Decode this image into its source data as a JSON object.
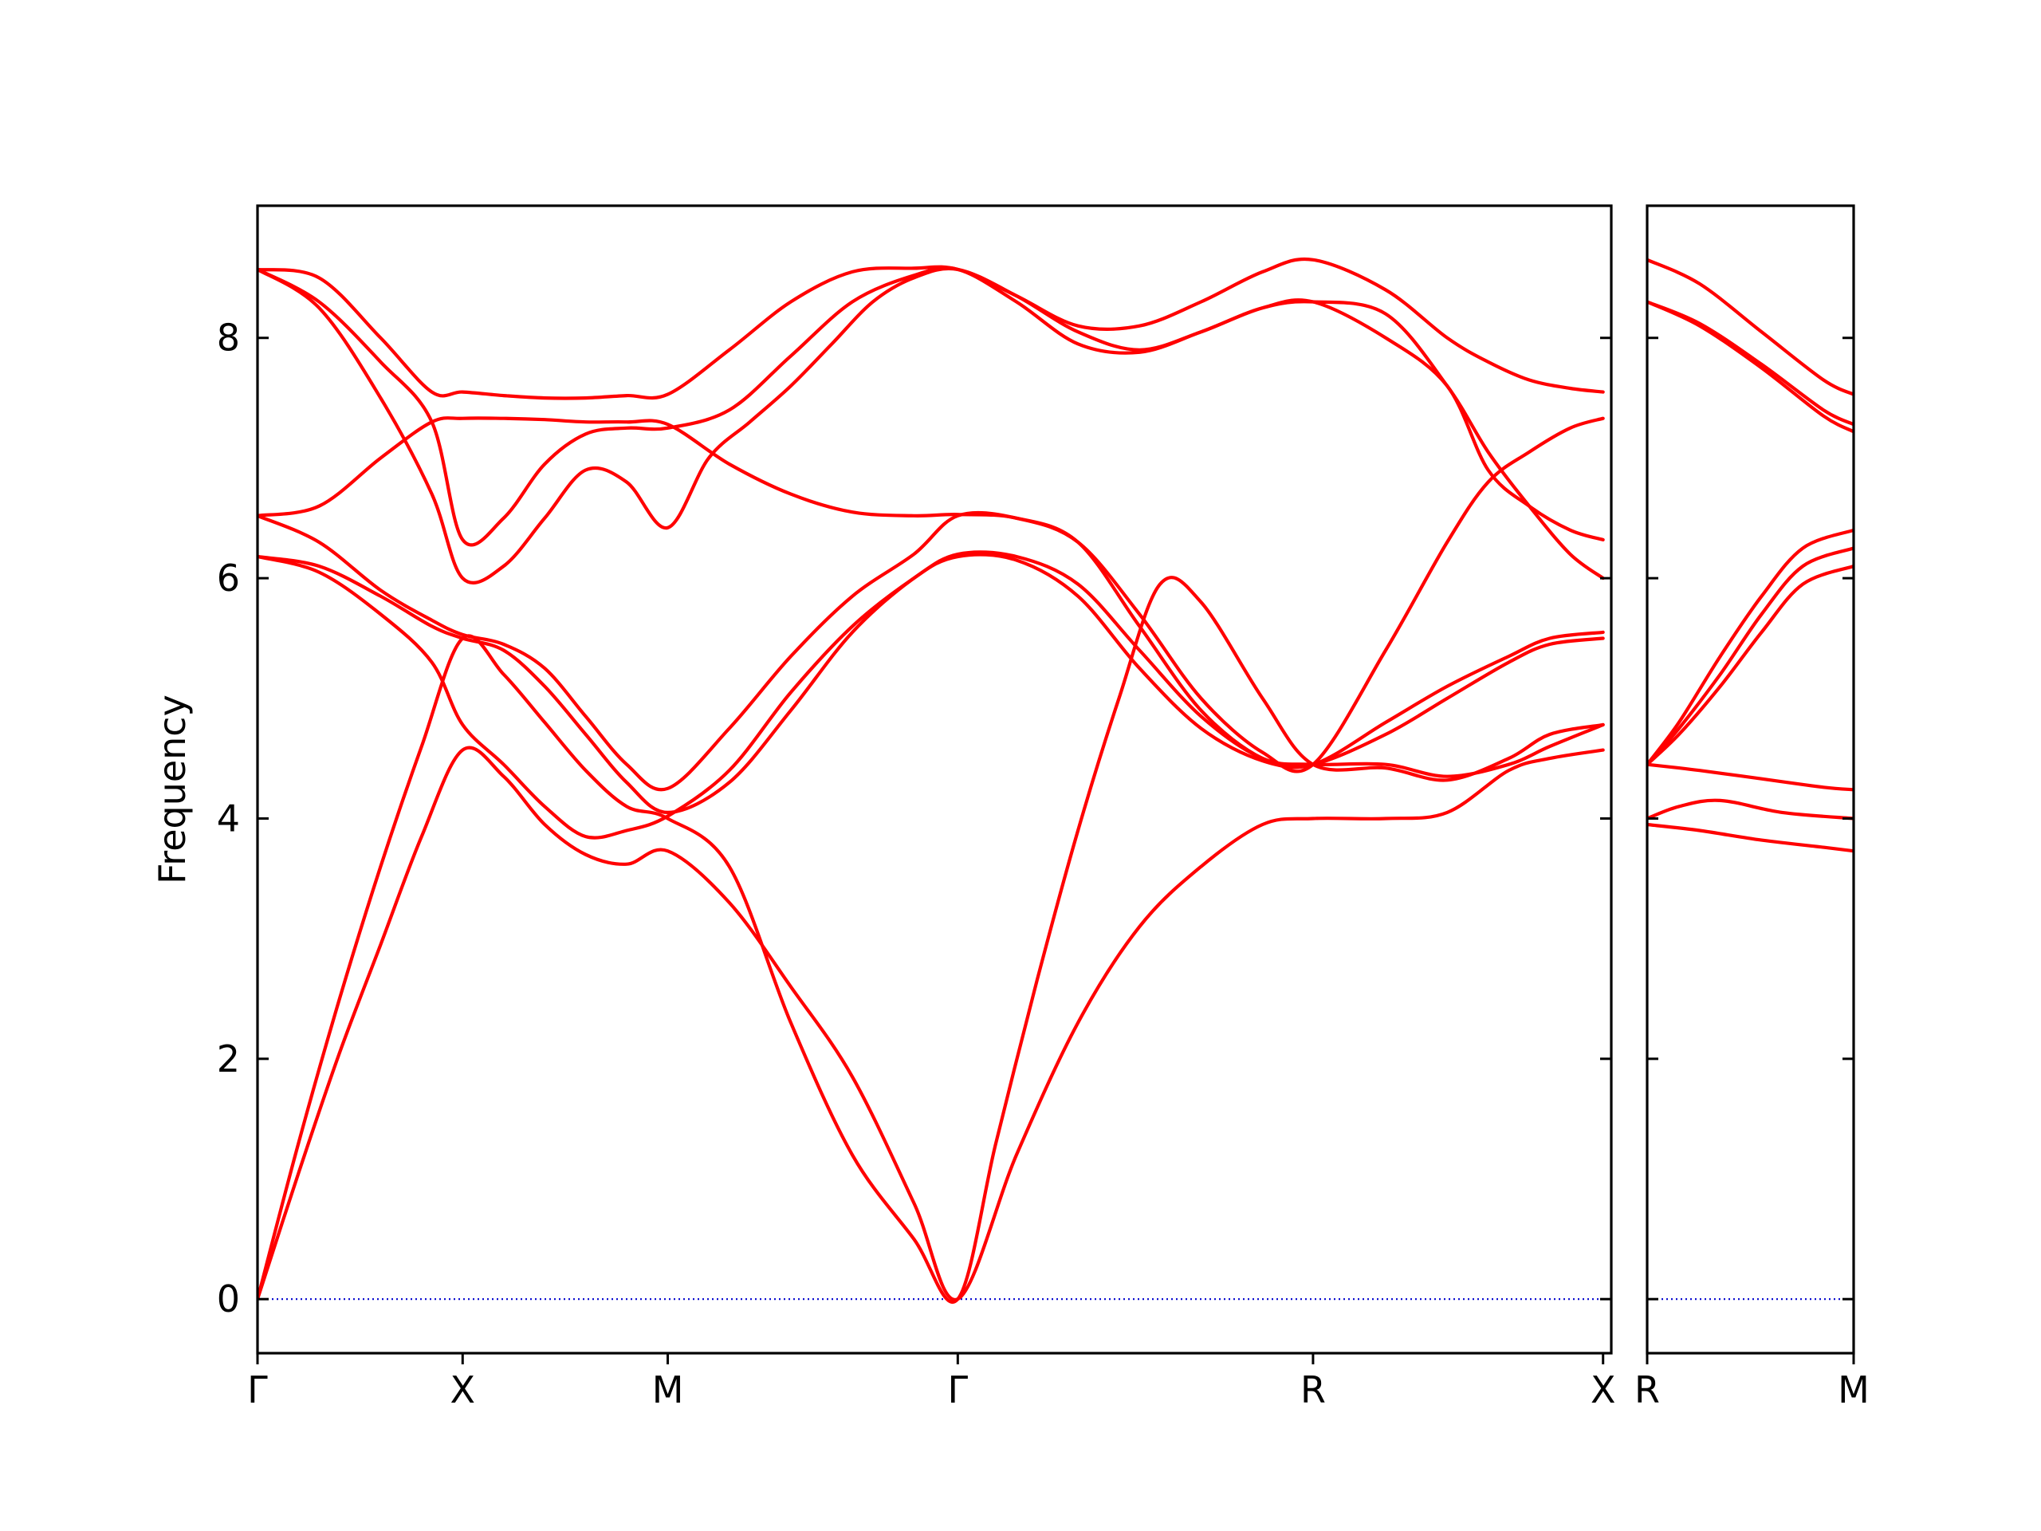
{
  "chart_data": {
    "type": "line",
    "ylabel": "Frequency",
    "xlabel": "",
    "ylim": [
      -0.45,
      9.1
    ],
    "yticks": [
      0,
      2,
      4,
      6,
      8
    ],
    "grid": false,
    "line_color": "#ff0000",
    "zero_line_color": "#0000cd",
    "panels": [
      {
        "xlim": [
          0,
          6.6
        ],
        "xticks": [
          {
            "x": 0,
            "label": "Γ"
          },
          {
            "x": 1.0,
            "label": "X"
          },
          {
            "x": 2.0,
            "label": "M"
          },
          {
            "x": 3.414,
            "label": "Γ"
          },
          {
            "x": 5.146,
            "label": "R"
          },
          {
            "x": 6.56,
            "label": "X"
          }
        ],
        "series": [
          {
            "x": [
              0,
              0.2,
              0.4,
              0.6,
              0.8,
              1.0,
              1.2,
              1.4,
              1.6,
              1.8,
              2.0,
              2.3,
              2.6,
              2.9,
              3.2,
              3.414,
              3.7,
              4.0,
              4.3,
              4.6,
              4.9,
              5.146,
              5.5,
              5.8,
              6.1,
              6.3,
              6.56
            ],
            "y": [
              0,
              1.05,
              2.05,
              2.95,
              3.85,
              4.57,
              4.35,
              3.95,
              3.7,
              3.62,
              3.73,
              3.3,
              2.6,
              1.85,
              0.8,
              0,
              1.2,
              2.3,
              3.1,
              3.6,
              3.95,
              4.0,
              4.0,
              4.05,
              4.4,
              4.5,
              4.57
            ]
          },
          {
            "x": [
              0,
              0.2,
              0.4,
              0.6,
              0.8,
              1.0,
              1.2,
              1.4,
              1.6,
              1.8,
              2.0,
              2.3,
              2.6,
              2.9,
              3.2,
              3.414,
              3.6,
              3.8,
              4.0,
              4.2,
              4.4,
              4.6,
              4.9,
              5.146,
              5.5,
              5.8,
              6.1,
              6.3,
              6.56
            ],
            "y": [
              0,
              1.3,
              2.5,
              3.6,
              4.6,
              5.5,
              5.2,
              4.8,
              4.4,
              4.1,
              4.0,
              3.6,
              2.3,
              1.2,
              0.5,
              0,
              1.3,
              2.65,
              3.9,
              5.0,
              5.95,
              5.8,
              5.0,
              4.45,
              4.42,
              4.32,
              4.5,
              4.7,
              4.78
            ]
          },
          {
            "x": [
              0,
              0.3,
              0.6,
              0.85,
              1.0,
              1.2,
              1.4,
              1.6,
              1.8,
              2.0,
              2.3,
              2.6,
              2.9,
              3.2,
              3.414,
              3.7,
              4.0,
              4.3,
              4.6,
              4.9,
              5.146,
              5.5,
              5.8,
              6.1,
              6.3,
              6.56
            ],
            "y": [
              6.18,
              6.05,
              5.7,
              5.3,
              4.78,
              4.45,
              4.1,
              3.85,
              3.9,
              4.02,
              4.4,
              5.05,
              5.6,
              6.0,
              6.2,
              6.18,
              5.95,
              5.4,
              4.85,
              4.5,
              4.45,
              4.45,
              4.35,
              4.45,
              4.6,
              4.78
            ]
          },
          {
            "x": [
              0,
              0.3,
              0.6,
              0.85,
              1.0,
              1.2,
              1.4,
              1.6,
              1.8,
              2.0,
              2.3,
              2.6,
              2.9,
              3.2,
              3.414,
              3.7,
              4.0,
              4.3,
              4.6,
              4.9,
              5.146,
              5.5,
              5.8,
              6.1,
              6.3,
              6.56
            ],
            "y": [
              6.18,
              6.1,
              5.85,
              5.6,
              5.5,
              5.4,
              5.1,
              4.7,
              4.3,
              4.05,
              4.3,
              4.9,
              5.55,
              6.0,
              6.18,
              6.15,
              5.85,
              5.25,
              4.75,
              4.48,
              4.45,
              4.7,
              5.0,
              5.3,
              5.45,
              5.5
            ]
          },
          {
            "x": [
              0,
              0.3,
              0.6,
              0.85,
              1.0,
              1.2,
              1.4,
              1.6,
              1.8,
              2.0,
              2.3,
              2.6,
              2.9,
              3.2,
              3.414,
              3.7,
              4.0,
              4.3,
              4.6,
              4.9,
              5.146,
              5.5,
              5.8,
              6.1,
              6.3,
              6.56
            ],
            "y": [
              6.52,
              6.3,
              5.9,
              5.65,
              5.53,
              5.45,
              5.25,
              4.85,
              4.45,
              4.25,
              4.75,
              5.35,
              5.85,
              6.2,
              6.52,
              6.5,
              6.3,
              5.6,
              4.9,
              4.5,
              4.45,
              4.8,
              5.1,
              5.35,
              5.5,
              5.55
            ]
          },
          {
            "x": [
              0,
              0.3,
              0.6,
              0.85,
              1.0,
              1.2,
              1.4,
              1.6,
              1.8,
              2.0,
              2.3,
              2.6,
              2.9,
              3.2,
              3.414,
              3.7,
              4.0,
              4.3,
              4.6,
              4.9,
              5.146,
              5.5,
              5.8,
              6.0,
              6.2,
              6.4,
              6.56
            ],
            "y": [
              6.52,
              6.6,
              7.0,
              7.3,
              7.33,
              7.33,
              7.32,
              7.3,
              7.3,
              7.28,
              6.95,
              6.7,
              6.55,
              6.52,
              6.53,
              6.5,
              6.3,
              5.7,
              5.0,
              4.55,
              4.45,
              5.4,
              6.3,
              6.8,
              7.05,
              7.25,
              7.33
            ]
          },
          {
            "x": [
              0,
              0.3,
              0.6,
              0.85,
              1.0,
              1.2,
              1.4,
              1.6,
              1.8,
              2.0,
              2.3,
              2.6,
              2.9,
              3.2,
              3.414,
              3.7,
              4.0,
              4.3,
              4.6,
              4.9,
              5.146,
              5.5,
              5.8,
              6.0,
              6.2,
              6.4,
              6.56
            ],
            "y": [
              8.57,
              8.3,
              7.8,
              7.3,
              6.32,
              6.5,
              6.95,
              7.2,
              7.25,
              7.25,
              7.4,
              7.85,
              8.3,
              8.52,
              8.57,
              8.3,
              7.95,
              7.88,
              8.05,
              8.25,
              8.3,
              8.0,
              7.6,
              6.9,
              6.6,
              6.4,
              6.32
            ]
          },
          {
            "x": [
              0,
              0.3,
              0.6,
              0.85,
              1.0,
              1.2,
              1.4,
              1.6,
              1.8,
              2.0,
              2.3,
              2.6,
              2.9,
              3.2,
              3.414,
              3.7,
              4.0,
              4.3,
              4.6,
              4.9,
              5.146,
              5.5,
              5.8,
              6.0,
              6.2,
              6.4,
              6.56
            ],
            "y": [
              8.57,
              8.5,
              8.0,
              7.55,
              7.55,
              7.52,
              7.5,
              7.5,
              7.52,
              7.53,
              7.9,
              8.3,
              8.55,
              8.58,
              8.57,
              8.35,
              8.1,
              8.1,
              8.3,
              8.55,
              8.65,
              8.4,
              8.0,
              7.8,
              7.65,
              7.58,
              7.55
            ]
          },
          {
            "x": [
              0,
              0.3,
              0.6,
              0.85,
              1.0,
              1.2,
              1.4,
              1.6,
              1.8,
              2.0,
              2.2,
              2.4,
              2.6,
              2.8,
              3.0,
              3.2,
              3.414,
              3.7,
              4.0,
              4.3,
              4.6,
              4.9,
              5.146,
              5.5,
              5.8,
              6.0,
              6.2,
              6.4,
              6.56
            ],
            "y": [
              8.57,
              8.25,
              7.5,
              6.7,
              6.0,
              6.1,
              6.5,
              6.9,
              6.8,
              6.42,
              7.0,
              7.3,
              7.6,
              7.95,
              8.3,
              8.5,
              8.57,
              8.35,
              8.05,
              7.9,
              8.05,
              8.25,
              8.3,
              8.2,
              7.6,
              7.05,
              6.6,
              6.2,
              6.0
            ]
          }
        ]
      },
      {
        "xlim": [
          5.146,
          6.146
        ],
        "xticks": [
          {
            "x": 5.146,
            "label": "R"
          },
          {
            "x": 6.146,
            "label": "M"
          }
        ],
        "series": [
          {
            "x": [
              5.146,
              5.4,
              5.7,
              6.0,
              6.146
            ],
            "y": [
              3.95,
              3.9,
              3.82,
              3.76,
              3.73
            ]
          },
          {
            "x": [
              5.146,
              5.3,
              5.5,
              5.8,
              6.146
            ],
            "y": [
              4.0,
              4.1,
              4.15,
              4.05,
              4.0
            ]
          },
          {
            "x": [
              5.146,
              5.4,
              5.7,
              6.0,
              6.146
            ],
            "y": [
              4.45,
              4.4,
              4.33,
              4.26,
              4.24
            ]
          },
          {
            "x": [
              5.146,
              5.3,
              5.5,
              5.7,
              5.9,
              6.146
            ],
            "y": [
              4.45,
              4.7,
              5.1,
              5.55,
              5.95,
              6.1
            ]
          },
          {
            "x": [
              5.146,
              5.3,
              5.5,
              5.7,
              5.9,
              6.146
            ],
            "y": [
              4.45,
              4.75,
              5.2,
              5.7,
              6.1,
              6.25
            ]
          },
          {
            "x": [
              5.146,
              5.3,
              5.5,
              5.7,
              5.9,
              6.146
            ],
            "y": [
              4.45,
              4.8,
              5.35,
              5.85,
              6.25,
              6.4
            ]
          },
          {
            "x": [
              5.146,
              5.4,
              5.7,
              6.0,
              6.146
            ],
            "y": [
              8.3,
              8.1,
              7.75,
              7.35,
              7.22
            ]
          },
          {
            "x": [
              5.146,
              5.4,
              5.7,
              6.0,
              6.146
            ],
            "y": [
              8.3,
              8.12,
              7.78,
              7.4,
              7.28
            ]
          },
          {
            "x": [
              5.146,
              5.4,
              5.7,
              6.0,
              6.146
            ],
            "y": [
              8.65,
              8.45,
              8.05,
              7.65,
              7.53
            ]
          }
        ]
      }
    ]
  }
}
